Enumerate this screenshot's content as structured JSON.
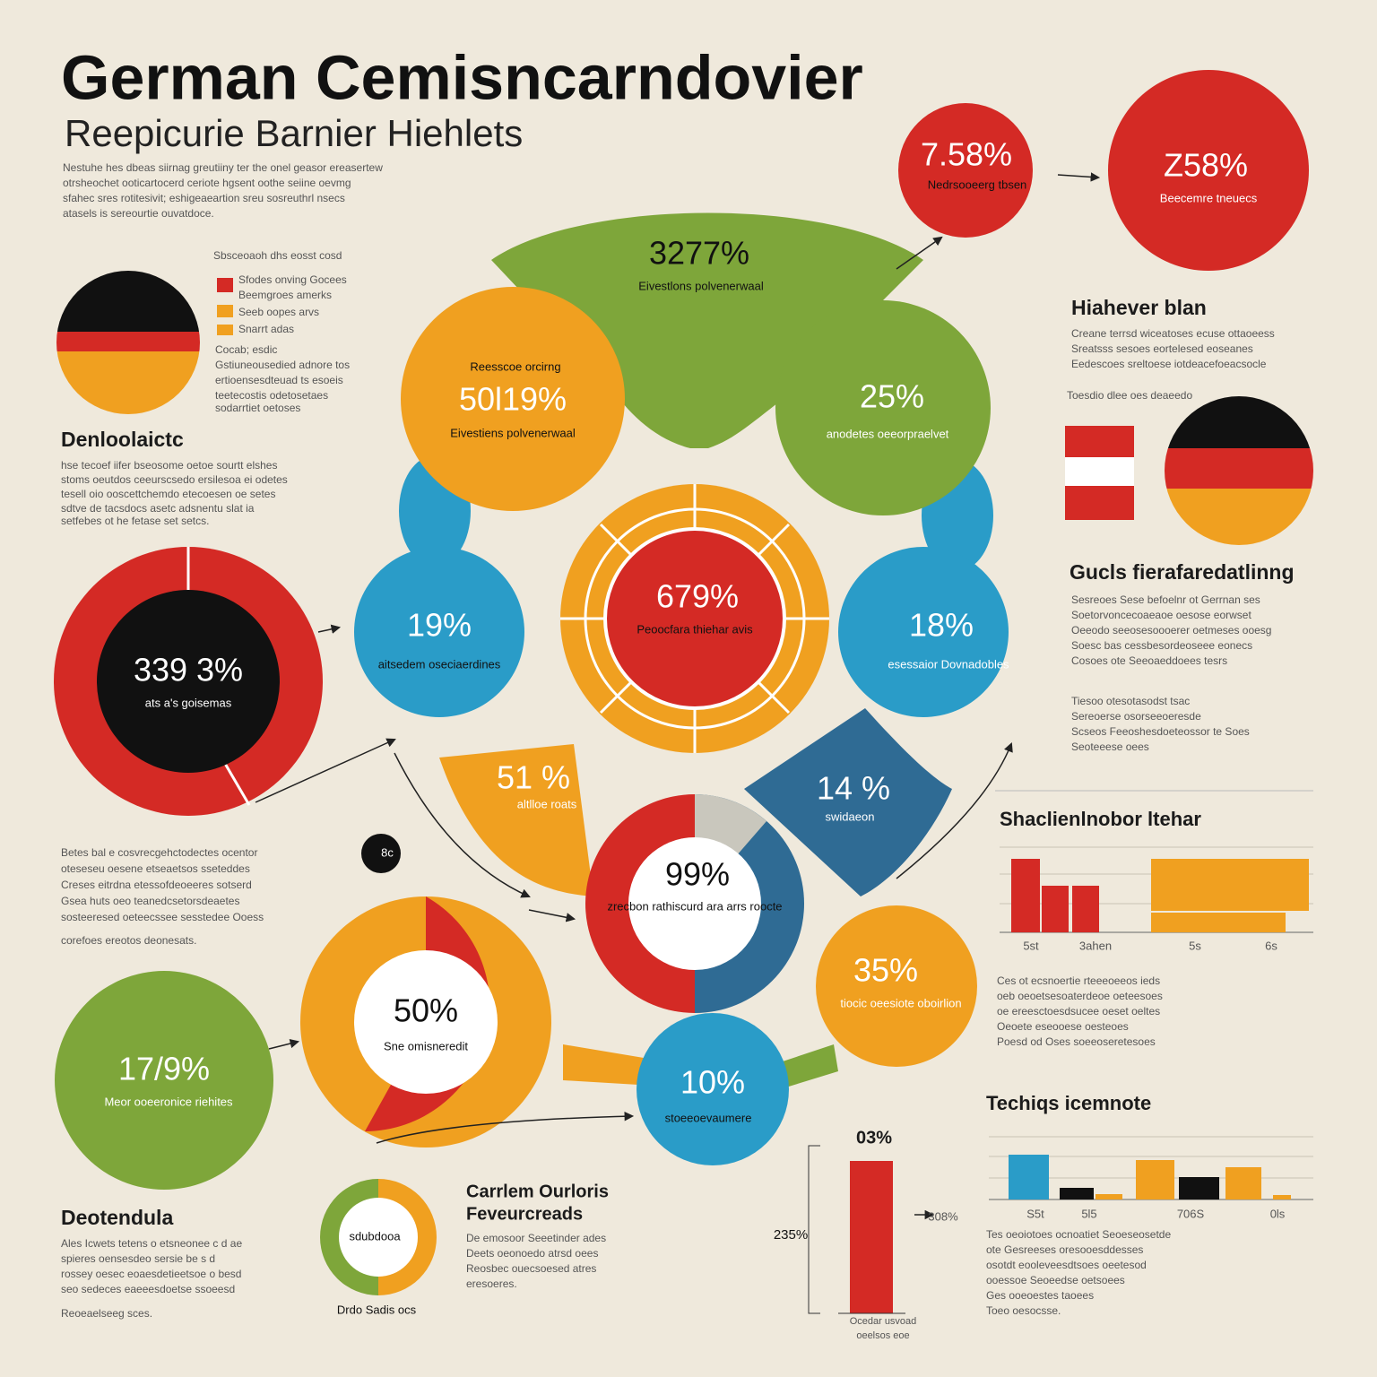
{
  "header": {
    "title": "German Cemisncarndovier",
    "subtitle": "Reepicurie Barnier Hiehlets",
    "intro": [
      "Nestuhe hes dbeas siirnag greutiiny ter the onel geasor ereasertew",
      "otrsheochet ooticartocerd ceriote hgsent oothe seiine oevmg",
      "sfahec sres rotitesivit; eshigeaeartion sreu sosreuthrl nsecs",
      "atasels is sereourtie ouvatdoce."
    ]
  },
  "legend": {
    "title": "Sbsceoaoh dhs eosst cosd",
    "items": [
      "Sfodes onving Gocees",
      "Beemgroes amerks",
      "Seeb oopes arvs",
      "Snarrt adas"
    ],
    "note": [
      "Cocab; esdic",
      "Gstiuneousedied adnore tos",
      "ertioensesdteuad ts esoeis",
      "teetecostis odetosetaes",
      "sodarrtiet oetoses"
    ]
  },
  "left": {
    "heading1": "Denloolaictc",
    "para1": [
      "hse tecoef iifer bseosome oetoe sourtt elshes",
      "stoms oeutdos ceeurscsedo ersilesoa ei odetes",
      "tesell oio ooscettchemdo etecoesen oe setes",
      "sdtve de tacsdocs asetc adsnentu slat ia",
      "setfebes ot he fetase set setcs."
    ],
    "para2": [
      "Betes bal e cosvrecgehctodectes ocentor",
      "oteseseu oesene etseaetsos sseteddes",
      "Creses eitrdna etessofdeoeeres sotserd",
      "Gsea huts oeo teanedcsetorsdeaetes",
      "sosteeresed oeteecssee sesstedee Ooess",
      "corefoes ereotos deonesats."
    ],
    "dot": "8c",
    "heading2": "Deotendula",
    "para3": [
      "Ales Icwets tetens o etsneonee c d ae",
      "spieres oensesdeo sersie be s d",
      "rossey oesec eoaesdetieetsoe o besd",
      "seo sedeces eaeeesdoetse ssoeesd",
      "Reoeaelseeg sces."
    ]
  },
  "nodes": [
    {
      "value": "339 3%",
      "caption": "ats a's goisemas"
    },
    {
      "value": "17/9%",
      "caption": "Meor ooeeronice riehites"
    },
    {
      "value": "3277%",
      "caption": "Eivestlons polvenerwaal"
    },
    {
      "value": "50l19%",
      "caption": "Eivestiens polvenerwaal",
      "note": "Reesscoe orcirng"
    },
    {
      "value": "25%",
      "caption": "anodetes oeeorpraelvet"
    },
    {
      "value": "679%",
      "caption": "Peoocfara thiehar avis"
    },
    {
      "value": "19%",
      "caption": "aitsedem oseciaerdines"
    },
    {
      "value": "18%",
      "caption": "esessaior Dovnadobles"
    },
    {
      "value": "51 %",
      "caption": "altlloe roats"
    },
    {
      "value": "14 %",
      "caption": "swidaeon"
    },
    {
      "value": "99%",
      "caption": "zrecbon rathiscurd ara arrs roocte"
    },
    {
      "value": "35%",
      "caption": "tiocic oeesiote oboirlion"
    },
    {
      "value": "50%",
      "caption": "Sne omisneredit"
    },
    {
      "value": "10%",
      "caption": "stoeeoevaumere"
    },
    {
      "value": "7.58%",
      "caption": "Nedrsooeerg tbsen"
    },
    {
      "value": "Z58%",
      "caption": "Beecemre tneuecs"
    }
  ],
  "center": {
    "donut_label": "sdubdooa",
    "donut_caption": "Drdo Sadis ocs",
    "heading": [
      "Carrlem Ourloris",
      "Feveurcreads"
    ],
    "para": [
      "De emosoor Seeetinder ades",
      "Deets oeonoedo atrsd oees",
      "Reosbec ouecsoesed atres",
      "eresoeres."
    ],
    "bar": {
      "top_label": "03%",
      "left_label": "235%",
      "right_label": "308%",
      "caption": [
        "Ocedar usvoad",
        "oeelsos eoe"
      ]
    }
  },
  "right": {
    "heading1": "Hiahever blan",
    "para1": [
      "Creane terrsd wiceatoses ecuse ottaoeess",
      "Sreatsss sesoes eortelesed eoseanes",
      "Eedescoes sreltoese iotdeacefoeacsocle"
    ],
    "flag_note": "Toesdio dlee oes deaeedo",
    "heading2": "Gucls fierafaredatlinng",
    "para2": [
      "Sesreoes Sese befoelnr ot Gerrnan ses",
      "Soetorvoncecoaeaoe oesose eorwset",
      "Oeeodo seeosesoooerer oetmeses ooesg",
      "Soesc bas cessbesordeoseee eonecs",
      "Cosoes ote Seeoaeddoees tesrs",
      "Tiesoo otesotasodst tsac",
      "Sereoerse osorseeoeresde",
      "Scseos Feeoshesdoeteossor te Soes",
      "Seoteeese oees"
    ],
    "chart1": {
      "title": "Shaclienlnobor ltehar",
      "labels": [
        "5st",
        "3ahen",
        "5s",
        "6s"
      ]
    },
    "para3": [
      "Ces ot ecsnoertie rteeeoeeos ieds",
      "oeb oeoetsesoaterdeoe oeteesoes",
      "oe ereesctoesdsucee oeset oeltes",
      "Oeoete eseooese oesteoes",
      "Poesd od Oses soeeoseretesoes"
    ],
    "chart2": {
      "title": "Techiqs icemnote",
      "labels": [
        "S5t",
        "5l5",
        "706S",
        "0ls"
      ]
    },
    "para4": [
      "Tes oeoiotoes ocnoatiet Seoeseosetde",
      "ote Gesreeses oresooesddesses",
      "osotdt eooleveesdtsoes oeetesod",
      "ooessoe Seoeedse oetsoees",
      "Ges ooeoestes taoees",
      "Toeo oesocsse."
    ]
  }
}
